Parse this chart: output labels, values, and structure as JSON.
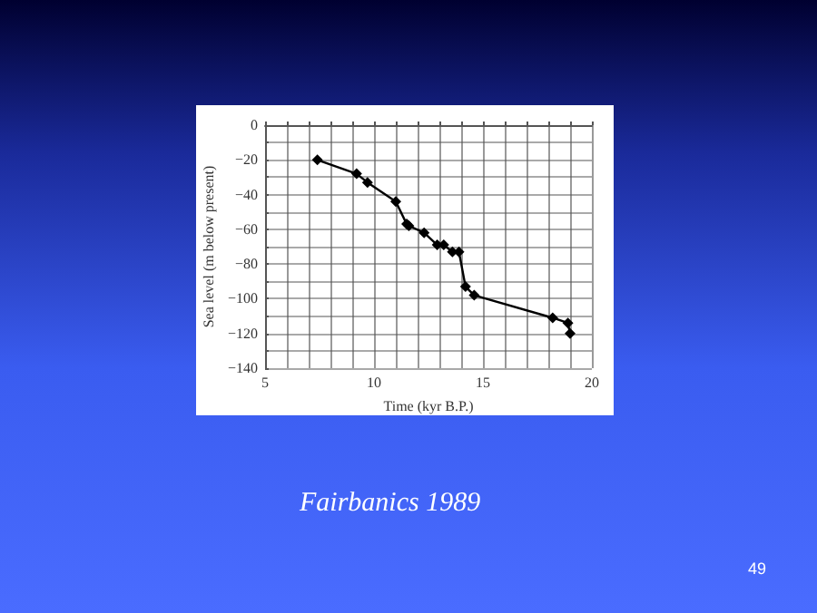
{
  "chart_data": {
    "type": "line",
    "xlabel": "Time (kyr B.P.)",
    "ylabel": "Sea level (m below present)",
    "x": [
      7.4,
      9.2,
      9.7,
      11.0,
      11.5,
      11.6,
      12.3,
      12.9,
      13.2,
      13.6,
      13.9,
      14.2,
      14.6,
      18.2,
      18.9,
      19.0
    ],
    "values": [
      -20,
      -28,
      -33,
      -44,
      -57,
      -58,
      -62,
      -69,
      -69,
      -73,
      -73,
      -93,
      -98,
      -111,
      -114,
      -120
    ],
    "color": "#000000",
    "marker": "diamond",
    "line_style": "solid",
    "grid": true,
    "xlim": [
      5,
      20
    ],
    "xticks": [
      5,
      {
        "value": 6,
        "label": null
      },
      {
        "value": 7,
        "label": null
      },
      {
        "value": 8,
        "label": null
      },
      {
        "value": 9,
        "label": null
      },
      10,
      {
        "value": 11,
        "label": null
      },
      {
        "value": 12,
        "label": null
      },
      {
        "value": 13,
        "label": null
      },
      {
        "value": 14,
        "label": null
      },
      15,
      {
        "value": 16,
        "label": null
      },
      {
        "value": 17,
        "label": null
      },
      {
        "value": 18,
        "label": null
      },
      {
        "value": 19,
        "label": null
      },
      20
    ],
    "ylim": [
      -140,
      0
    ],
    "yticks": [
      -140,
      {
        "value": -130,
        "label": null
      },
      -120,
      {
        "value": -110,
        "label": null
      },
      -100,
      {
        "value": -90,
        "label": null
      },
      -80,
      {
        "value": -70,
        "label": null
      },
      -60,
      {
        "value": -50,
        "label": null
      },
      -40,
      {
        "value": -30,
        "label": null
      },
      -20,
      {
        "value": -10,
        "label": null
      },
      0
    ],
    "annotations": [
      "Fairbanics 1989",
      "49"
    ]
  }
}
